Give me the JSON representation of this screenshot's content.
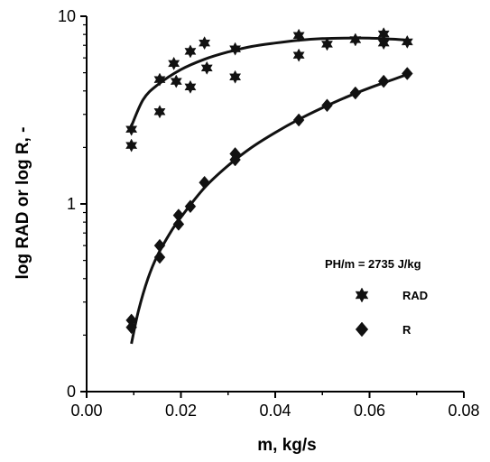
{
  "chart_data": {
    "type": "scatter",
    "xlabel": "m, kg/s",
    "ylabel": "log RAD or log R, -",
    "xlim": [
      0,
      0.08
    ],
    "ylim": [
      0.1,
      10
    ],
    "yscale": "log",
    "x_ticks": [
      {
        "value": 0.0,
        "label": "0.00"
      },
      {
        "value": 0.02,
        "label": "0.02"
      },
      {
        "value": 0.04,
        "label": "0.04"
      },
      {
        "value": 0.06,
        "label": "0.06"
      },
      {
        "value": 0.08,
        "label": "0.08"
      }
    ],
    "y_ticks": [
      {
        "value": 0.1,
        "label": "0"
      },
      {
        "value": 1,
        "label": "1"
      },
      {
        "value": 10,
        "label": "10"
      }
    ],
    "grid": false,
    "annotation": "PH/m = 2735 J/kg",
    "legend_position": "right",
    "series": [
      {
        "name": "RAD",
        "marker": "star",
        "x": [
          0.0095,
          0.0095,
          0.0155,
          0.0155,
          0.0185,
          0.019,
          0.022,
          0.022,
          0.025,
          0.0255,
          0.0315,
          0.0315,
          0.045,
          0.045,
          0.051,
          0.057,
          0.063,
          0.063,
          0.068
        ],
        "y": [
          2.5,
          2.05,
          4.6,
          3.1,
          5.6,
          4.5,
          6.5,
          4.2,
          7.2,
          5.3,
          6.7,
          4.75,
          7.9,
          6.2,
          7.1,
          7.5,
          8.05,
          7.2,
          7.3
        ]
      },
      {
        "name": "R",
        "marker": "diamond",
        "x": [
          0.0095,
          0.0095,
          0.0155,
          0.0155,
          0.0195,
          0.0195,
          0.022,
          0.025,
          0.0315,
          0.0315,
          0.045,
          0.051,
          0.057,
          0.063,
          0.068
        ],
        "y": [
          0.24,
          0.22,
          0.6,
          0.52,
          0.87,
          0.78,
          0.97,
          1.3,
          1.85,
          1.72,
          2.8,
          3.35,
          3.9,
          4.5,
          4.95
        ]
      }
    ],
    "fit_curves": [
      {
        "series": "RAD",
        "x": [
          0.0095,
          0.012,
          0.015,
          0.02,
          0.025,
          0.03,
          0.035,
          0.04,
          0.045,
          0.05,
          0.055,
          0.06,
          0.065,
          0.068
        ],
        "y": [
          2.6,
          3.6,
          4.3,
          5.2,
          5.9,
          6.45,
          6.9,
          7.2,
          7.45,
          7.6,
          7.65,
          7.65,
          7.55,
          7.45
        ]
      },
      {
        "series": "R",
        "x": [
          0.0095,
          0.011,
          0.013,
          0.015,
          0.018,
          0.02,
          0.025,
          0.03,
          0.035,
          0.04,
          0.045,
          0.05,
          0.055,
          0.06,
          0.065,
          0.068
        ],
        "y": [
          0.18,
          0.27,
          0.4,
          0.53,
          0.72,
          0.85,
          1.22,
          1.6,
          2.0,
          2.4,
          2.82,
          3.25,
          3.7,
          4.15,
          4.6,
          4.9
        ]
      }
    ]
  }
}
